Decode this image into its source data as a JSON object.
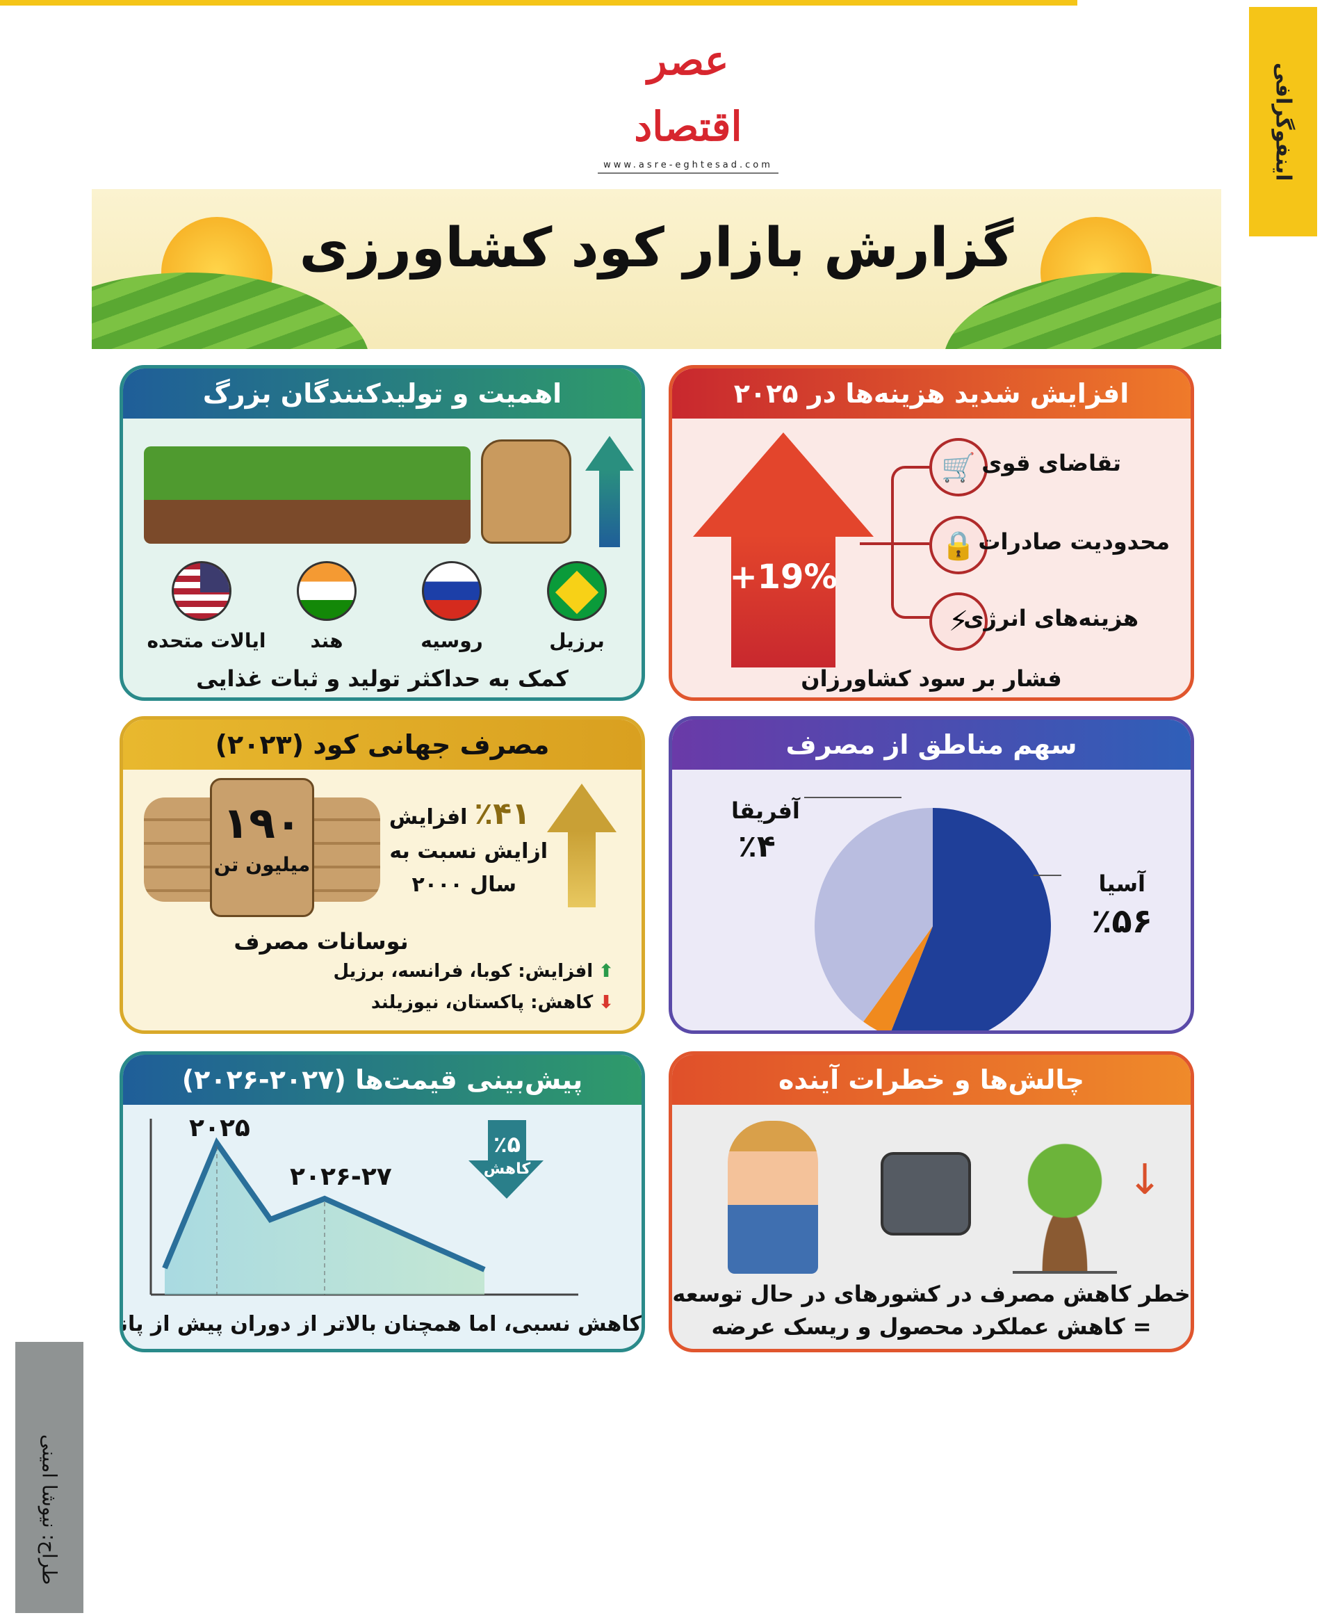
{
  "publication": {
    "logo_text": "عصر اقتصاد",
    "url": "www.asre-eghtesad.com",
    "section_tab": "اینفوگرافی",
    "designer": "طراح: نیوشا امینی"
  },
  "title": "گزارش بازار کود کشاورزی",
  "colors": {
    "accent_yellow": "#f5c518",
    "red_panel": "#d9382e",
    "blue_panel": "#1f5e99",
    "green_panel": "#2f9b6a",
    "gold_panel": "#e8b82e",
    "purple_panel": "#6a4aa8",
    "orange_panel": "#e8652a"
  },
  "producers": {
    "title": "اهمیت و تولیدکنندگان بزرگ",
    "countries": [
      {
        "name": "برزیل",
        "flag": "brazil-flag"
      },
      {
        "name": "روسیه",
        "flag": "russia-flag"
      },
      {
        "name": "هند",
        "flag": "india-flag"
      },
      {
        "name": "ایالات متحده",
        "flag": "usa-flag"
      }
    ],
    "caption": "کمک به حداکثر تولید و ثبات غذایی"
  },
  "costs": {
    "title": "افزایش شدید هزینه‌ها در ۲۰۲۵",
    "increase": "+19%",
    "factors": [
      {
        "label": "تقاضای قوی",
        "icon": "shopping-cart-icon"
      },
      {
        "label": "محدودیت صادرات",
        "icon": "locked-container-icon"
      },
      {
        "label": "هزینه‌های انرژی",
        "icon": "energy-barrel-icon"
      }
    ],
    "caption": "فشار بر سود کشاورزان"
  },
  "consumption": {
    "title": "مصرف جهانی کود (۲۰۲۳)",
    "amount": "۱۹۰",
    "unit": "میلیون تن",
    "growth_pct": "٪۴۱",
    "growth_word": "افزایش",
    "growth_line1": "ازایش نسبت به",
    "growth_line2": "سال ۲۰۰۰",
    "fluct_title": "نوسانات مصرف",
    "increase_line": "افزایش: کوبا، فرانسه، برزیل",
    "decrease_line": "کاهش: پاکستان، نیوزیلند"
  },
  "regions": {
    "title": "سهم مناطق از مصرف",
    "slices": [
      {
        "name": "آسیا",
        "label": "٪۵۶",
        "value": 56,
        "color": "#1f3f99"
      },
      {
        "name": "آفریقا",
        "label": "٪۴",
        "value": 4,
        "color": "#f08a1e"
      },
      {
        "name": "",
        "label": "",
        "value": 40,
        "color": "#b9bde0"
      }
    ]
  },
  "forecast": {
    "title": "پیش‌بینی قیمت‌ها (۲۰۲۷-۲۰۲۶)",
    "peak_label": "۲۰۲۵",
    "mid_label": "۲۰۲۶-۲۷",
    "drop_pct": "٪۵",
    "drop_word": "کاهش",
    "caption": "کاهش نسبی، اما همچنان بالاتر از دوران پیش از پاندمی"
  },
  "challenges": {
    "title": "چالش‌ها و خطرات آینده",
    "line1": "خطر کاهش مصرف در کشورهای در حال توسعه",
    "line2": "= کاهش عملکرد محصول و ریسک عرضه"
  }
}
